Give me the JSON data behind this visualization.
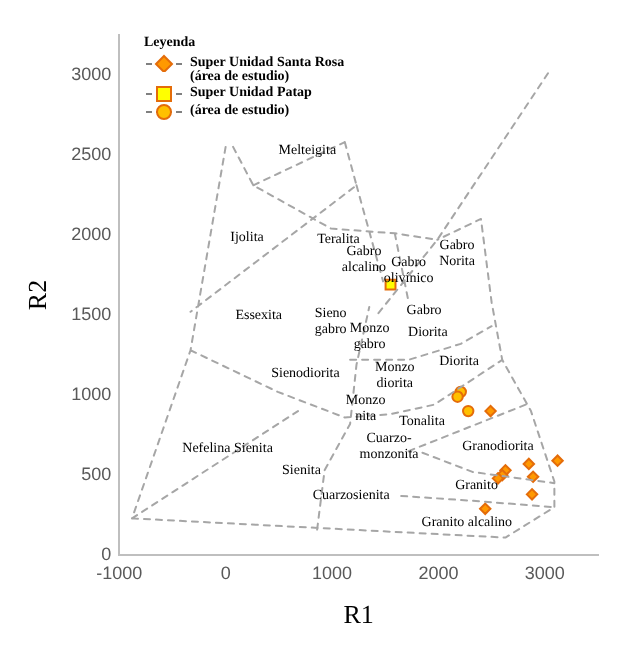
{
  "chart_data": {
    "type": "scatter",
    "xlabel": "R1",
    "ylabel": "R2",
    "legend_title": "Leyenda",
    "legend": "top left",
    "grid": false,
    "xlim": [
      -1000,
      3500
    ],
    "xticks": [
      -1000,
      0,
      1000,
      2000,
      3000
    ],
    "ylim": [
      0,
      3250
    ],
    "yticks": [
      0,
      500,
      1000,
      1500,
      2000,
      2500,
      3000
    ],
    "series": [
      {
        "type": "line",
        "color": "#a6a6a6",
        "line_style": "dashed",
        "marker": "none",
        "x": [
          0,
          -330,
          -880,
          null,
          -880,
          2630,
          3090,
          3090,
          2870,
          2600,
          2500,
          2400,
          1990,
          null,
          3030,
          1990,
          1410,
          null,
          70,
          260,
          990,
          1590,
          1990,
          null,
          260,
          1120,
          null,
          1120,
          1230,
          -330,
          null,
          -330,
          490,
          1120,
          1540,
          1960,
          2600,
          null,
          1170,
          1720,
          2210,
          2500,
          null,
          860,
          930,
          1170,
          1230,
          1350,
          null,
          1720,
          2820,
          null,
          1850,
          2320,
          3090,
          null,
          1650,
          2320,
          3090,
          null,
          -880,
          680,
          null,
          1230,
          1480,
          null,
          1590,
          1720
        ],
        "values": [
          2550,
          1280,
          230,
          null,
          230,
          110,
          300,
          460,
          900,
          1220,
          1580,
          2100,
          1970,
          null,
          3010,
          1970,
          1490,
          null,
          2550,
          2310,
          2040,
          2010,
          1970,
          null,
          2310,
          2580,
          null,
          2580,
          2310,
          1520,
          null,
          1280,
          1020,
          860,
          880,
          940,
          1220,
          null,
          1220,
          1220,
          1320,
          1430,
          null,
          160,
          530,
          820,
          1190,
          1550,
          null,
          650,
          940,
          null,
          640,
          520,
          450,
          null,
          370,
          340,
          300,
          null,
          230,
          900,
          null,
          2310,
          1710,
          null,
          2010,
          1580
        ]
      },
      {
        "name": "Super Unidad Santa Rosa\n(área de estudio)",
        "color": "#ff9900",
        "marker": "diamond",
        "x": [
          2490,
          3120,
          2850,
          2890,
          2880,
          2440,
          2630,
          2600,
          2560
        ],
        "values": [
          900,
          590,
          570,
          490,
          380,
          290,
          530,
          500,
          480
        ]
      },
      {
        "name": "Super Unidad Patap",
        "color": "#ffff00",
        "marker": "square",
        "x": [
          1550
        ],
        "values": [
          1690
        ]
      },
      {
        "name": "(área de estudio)",
        "color": "#ffc000",
        "marker": "circle",
        "x": [
          2210,
          2180,
          2280
        ],
        "values": [
          1020,
          990,
          900
        ]
      }
    ],
    "annotations": [
      "Melteigita",
      "Ijolita",
      "Teralita",
      "Gabro\nalcalino",
      "Gabro\nolivínico",
      "Gabro\nNorita",
      "Essexita",
      "Sieno\ngabro",
      "Monzo\ngabro",
      "Gabro",
      "Diorita",
      "Diorita",
      "Sienodiorita",
      "Monzo\ndiorita",
      "Monzo\nnita",
      "Tonalita",
      "Cuarzo-\nmonzonita",
      "Granodiorita",
      "Nefelina Sienita",
      "Sienita",
      "Granito",
      "Cuarzosienita",
      "Granito alcalino"
    ]
  }
}
